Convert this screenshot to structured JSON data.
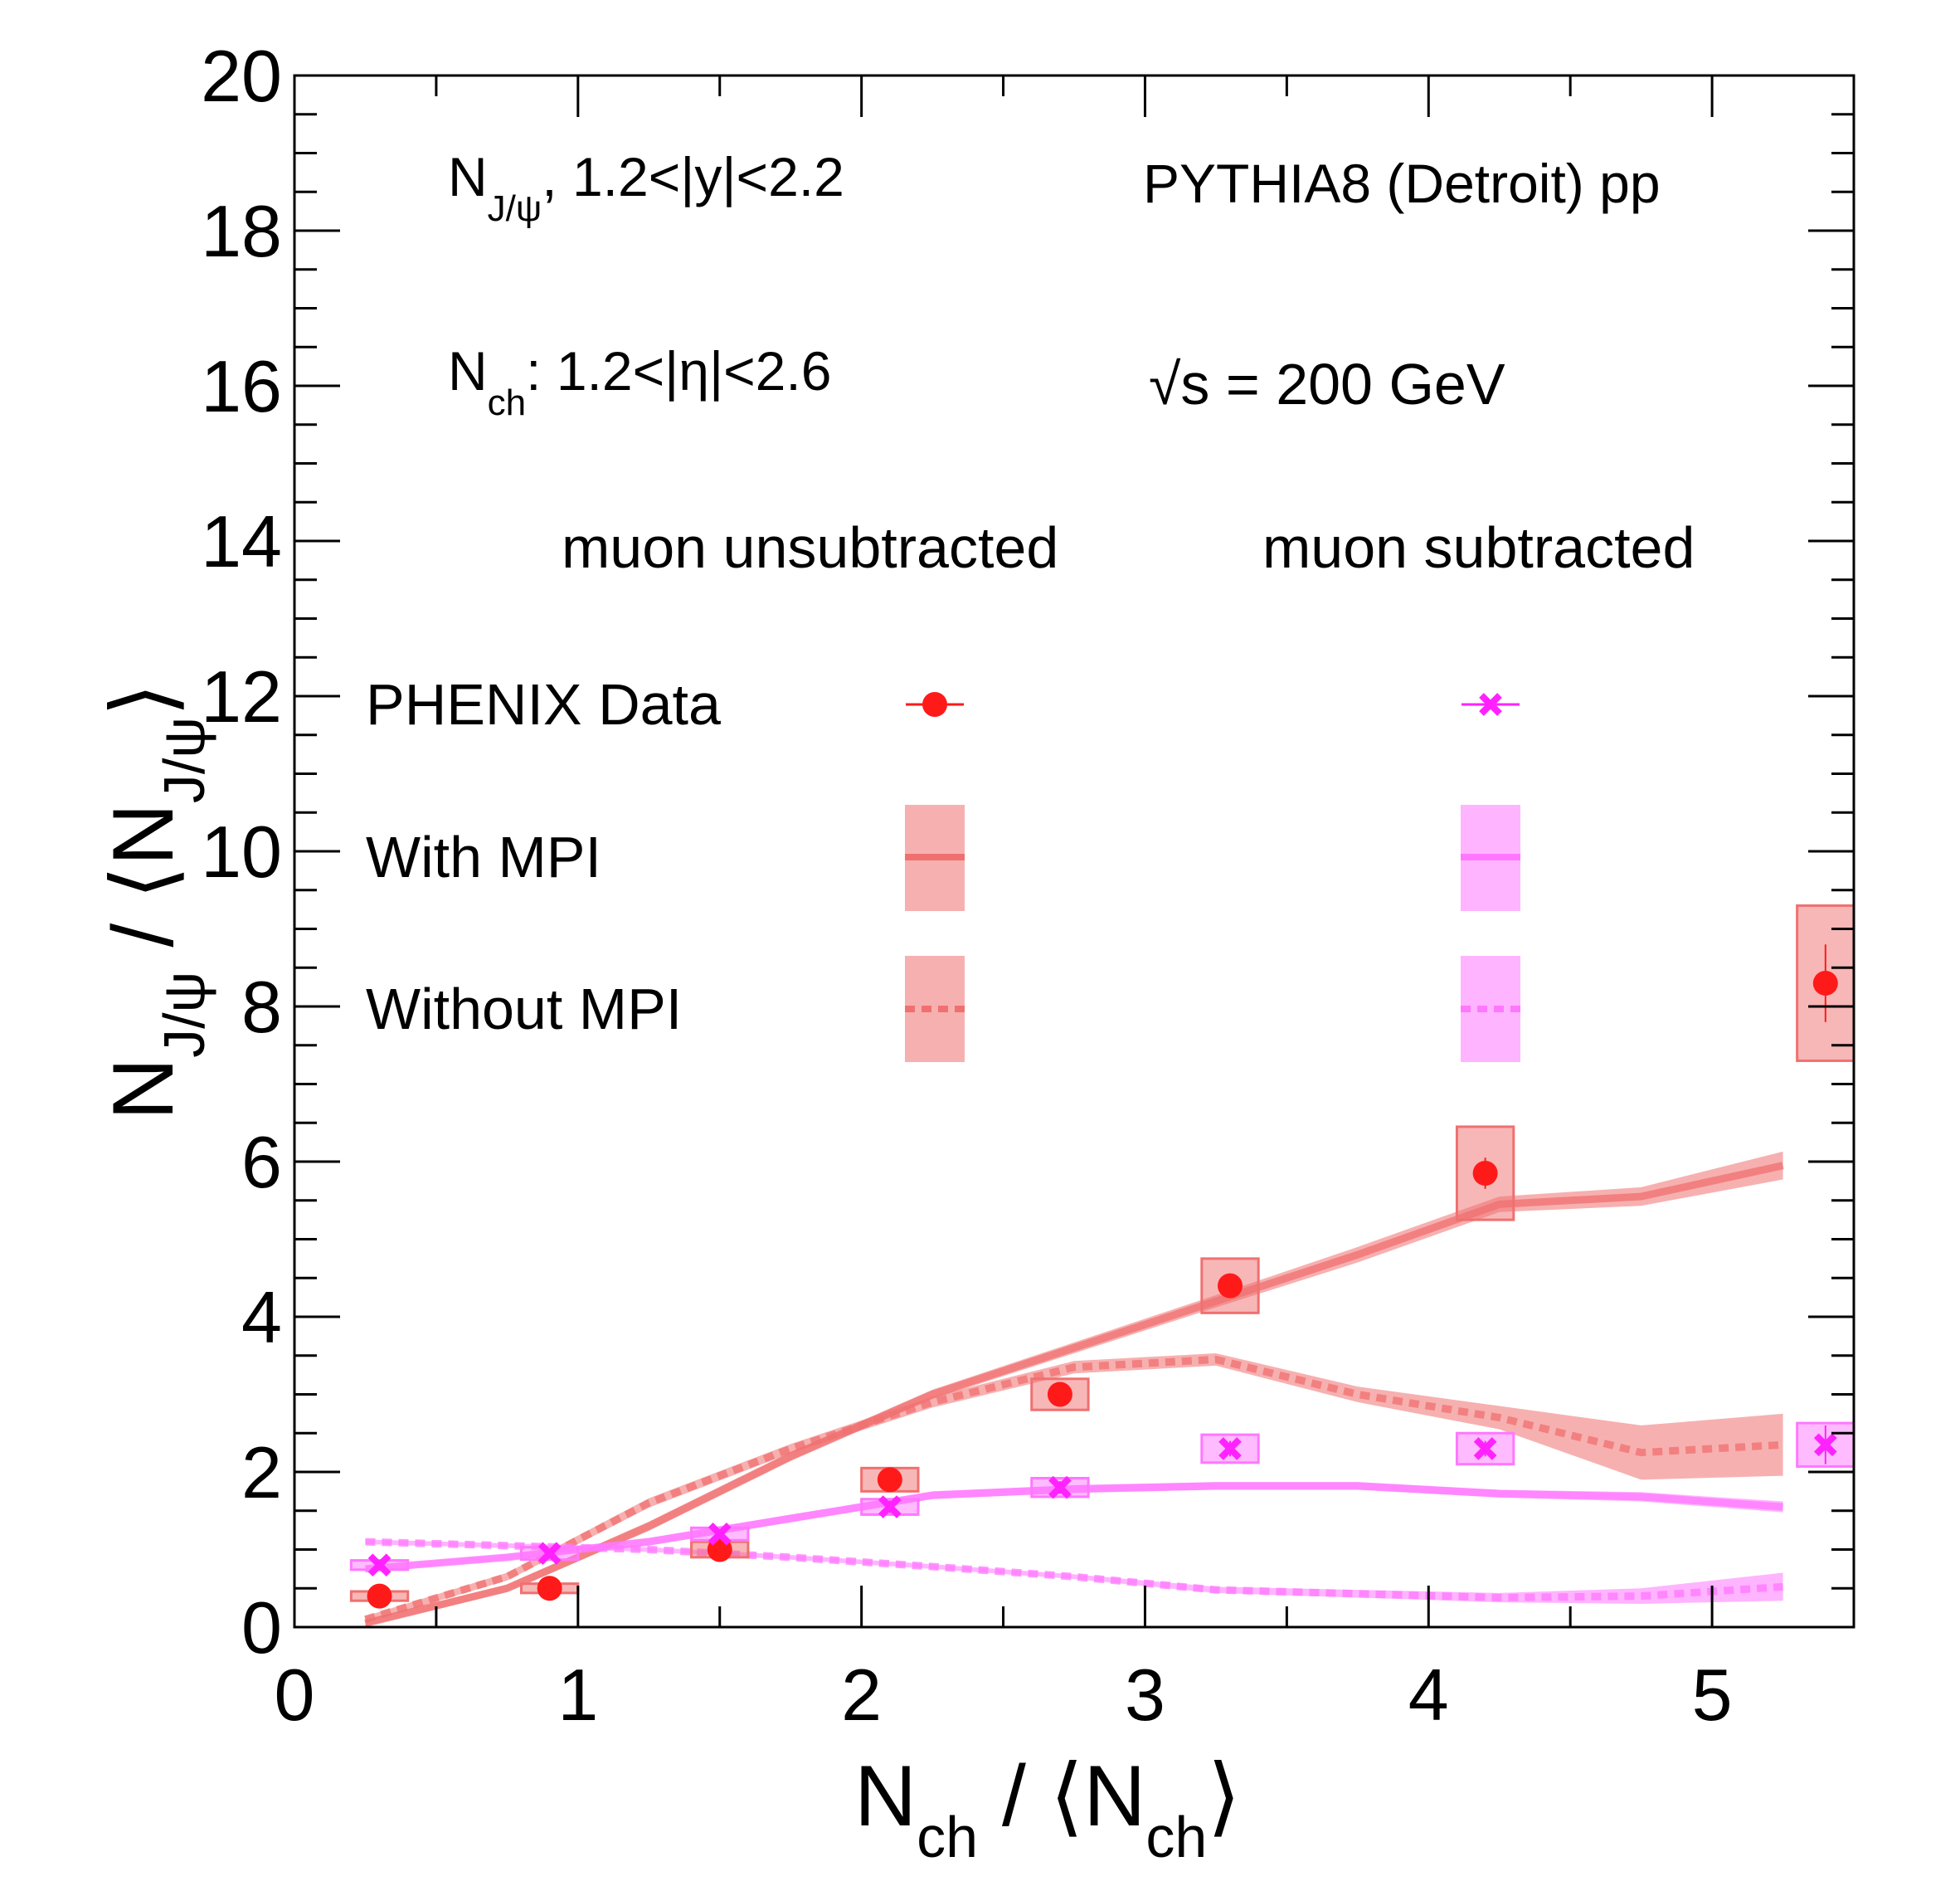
{
  "chart_data": {
    "type": "scatter",
    "xlim": [
      0,
      5.5
    ],
    "ylim": [
      0,
      20
    ],
    "x_ticks": [
      "0",
      "1",
      "2",
      "3",
      "4",
      "5"
    ],
    "y_ticks": [
      "0",
      "2",
      "4",
      "6",
      "8",
      "10",
      "12",
      "14",
      "16",
      "18",
      "20"
    ],
    "xlabel": {
      "main": "N",
      "sub": "ch",
      "sep": " / ⟨N",
      "sub2": "ch",
      "close": "⟩"
    },
    "ylabel": {
      "main": "N",
      "sub": "J/ψ",
      "sep": " / ⟨N",
      "sub2": "J/ψ",
      "close": "⟩"
    },
    "annotations": {
      "jpsi_main": "N",
      "jpsi_sub": "J/ψ",
      "jpsi_rest": ", 1.2<|y|<2.2",
      "nch_main": "N",
      "nch_sub": "ch",
      "nch_rest": ": 1.2<|η|<2.6",
      "generator": "PYTHIA8 (Detroit) pp",
      "sqrt_sym": "√",
      "energy": "s = 200 GeV"
    },
    "legend": {
      "col1_header": "muon unsubtracted",
      "col2_header": "muon subtracted",
      "rows": [
        "PHENIX Data",
        "With MPI",
        "Without MPI"
      ]
    },
    "colors": {
      "unsub_marker": "#ff1a1a",
      "unsub_band": "#f07070",
      "sub_marker": "#ff22ff",
      "sub_band": "#ff77ff"
    },
    "series": [
      {
        "name": "PHENIX Data muon unsubtracted",
        "marker": "circle",
        "x": [
          0.3,
          0.9,
          1.5,
          2.1,
          2.7,
          3.3,
          4.2,
          5.4
        ],
        "y": [
          0.4,
          0.5,
          1.0,
          1.9,
          3.0,
          4.4,
          5.85,
          8.3
        ],
        "stat_err": [
          0.05,
          0.05,
          0.05,
          0.1,
          0.1,
          0.15,
          0.2,
          0.5
        ],
        "sys_err": [
          0.06,
          0.06,
          0.1,
          0.15,
          0.2,
          0.35,
          0.6,
          1.0
        ]
      },
      {
        "name": "PHENIX Data muon subtracted",
        "marker": "x",
        "x": [
          0.3,
          0.9,
          1.5,
          2.1,
          2.7,
          3.3,
          4.2,
          5.4
        ],
        "y": [
          0.8,
          0.95,
          1.2,
          1.55,
          1.8,
          2.3,
          2.3,
          2.35
        ],
        "stat_err": [
          0.05,
          0.05,
          0.05,
          0.08,
          0.08,
          0.1,
          0.1,
          0.25
        ],
        "sys_err": [
          0.06,
          0.08,
          0.08,
          0.1,
          0.12,
          0.18,
          0.2,
          0.28
        ]
      },
      {
        "name": "With MPI muon unsubtracted",
        "style": "solid-band",
        "x": [
          0.25,
          0.75,
          1.25,
          1.75,
          2.25,
          2.75,
          3.25,
          3.75,
          4.25,
          4.75,
          5.25
        ],
        "y": [
          0.05,
          0.5,
          1.3,
          2.2,
          3.0,
          3.6,
          4.2,
          4.8,
          5.45,
          5.55,
          5.95
        ],
        "err": [
          0.04,
          0.05,
          0.06,
          0.06,
          0.06,
          0.07,
          0.08,
          0.1,
          0.1,
          0.12,
          0.18
        ]
      },
      {
        "name": "Without MPI muon unsubtracted",
        "style": "dotted-band",
        "x": [
          0.25,
          0.75,
          1.25,
          1.75,
          2.25,
          2.75,
          3.25,
          3.75,
          4.25,
          4.75,
          5.25
        ],
        "y": [
          0.1,
          0.65,
          1.6,
          2.3,
          2.9,
          3.35,
          3.45,
          3.0,
          2.7,
          2.25,
          2.35
        ],
        "err": [
          0.04,
          0.05,
          0.06,
          0.06,
          0.07,
          0.08,
          0.08,
          0.1,
          0.15,
          0.35,
          0.4
        ]
      },
      {
        "name": "With MPI muon subtracted",
        "style": "solid-band",
        "x": [
          0.25,
          0.75,
          1.25,
          1.75,
          2.25,
          2.75,
          3.25,
          3.75,
          4.25,
          4.75,
          5.25
        ],
        "y": [
          0.75,
          0.9,
          1.1,
          1.4,
          1.7,
          1.78,
          1.82,
          1.82,
          1.72,
          1.68,
          1.55
        ],
        "err": [
          0.04,
          0.04,
          0.05,
          0.05,
          0.05,
          0.05,
          0.05,
          0.05,
          0.05,
          0.06,
          0.07
        ]
      },
      {
        "name": "Without MPI muon subtracted",
        "style": "dotted-band",
        "x": [
          0.25,
          0.75,
          1.25,
          1.75,
          2.25,
          2.75,
          3.25,
          3.75,
          4.25,
          4.75,
          5.25
        ],
        "y": [
          1.1,
          1.05,
          1.0,
          0.9,
          0.78,
          0.65,
          0.48,
          0.43,
          0.38,
          0.4,
          0.52
        ],
        "err": [
          0.03,
          0.03,
          0.03,
          0.03,
          0.03,
          0.03,
          0.04,
          0.05,
          0.06,
          0.1,
          0.18
        ]
      }
    ]
  }
}
